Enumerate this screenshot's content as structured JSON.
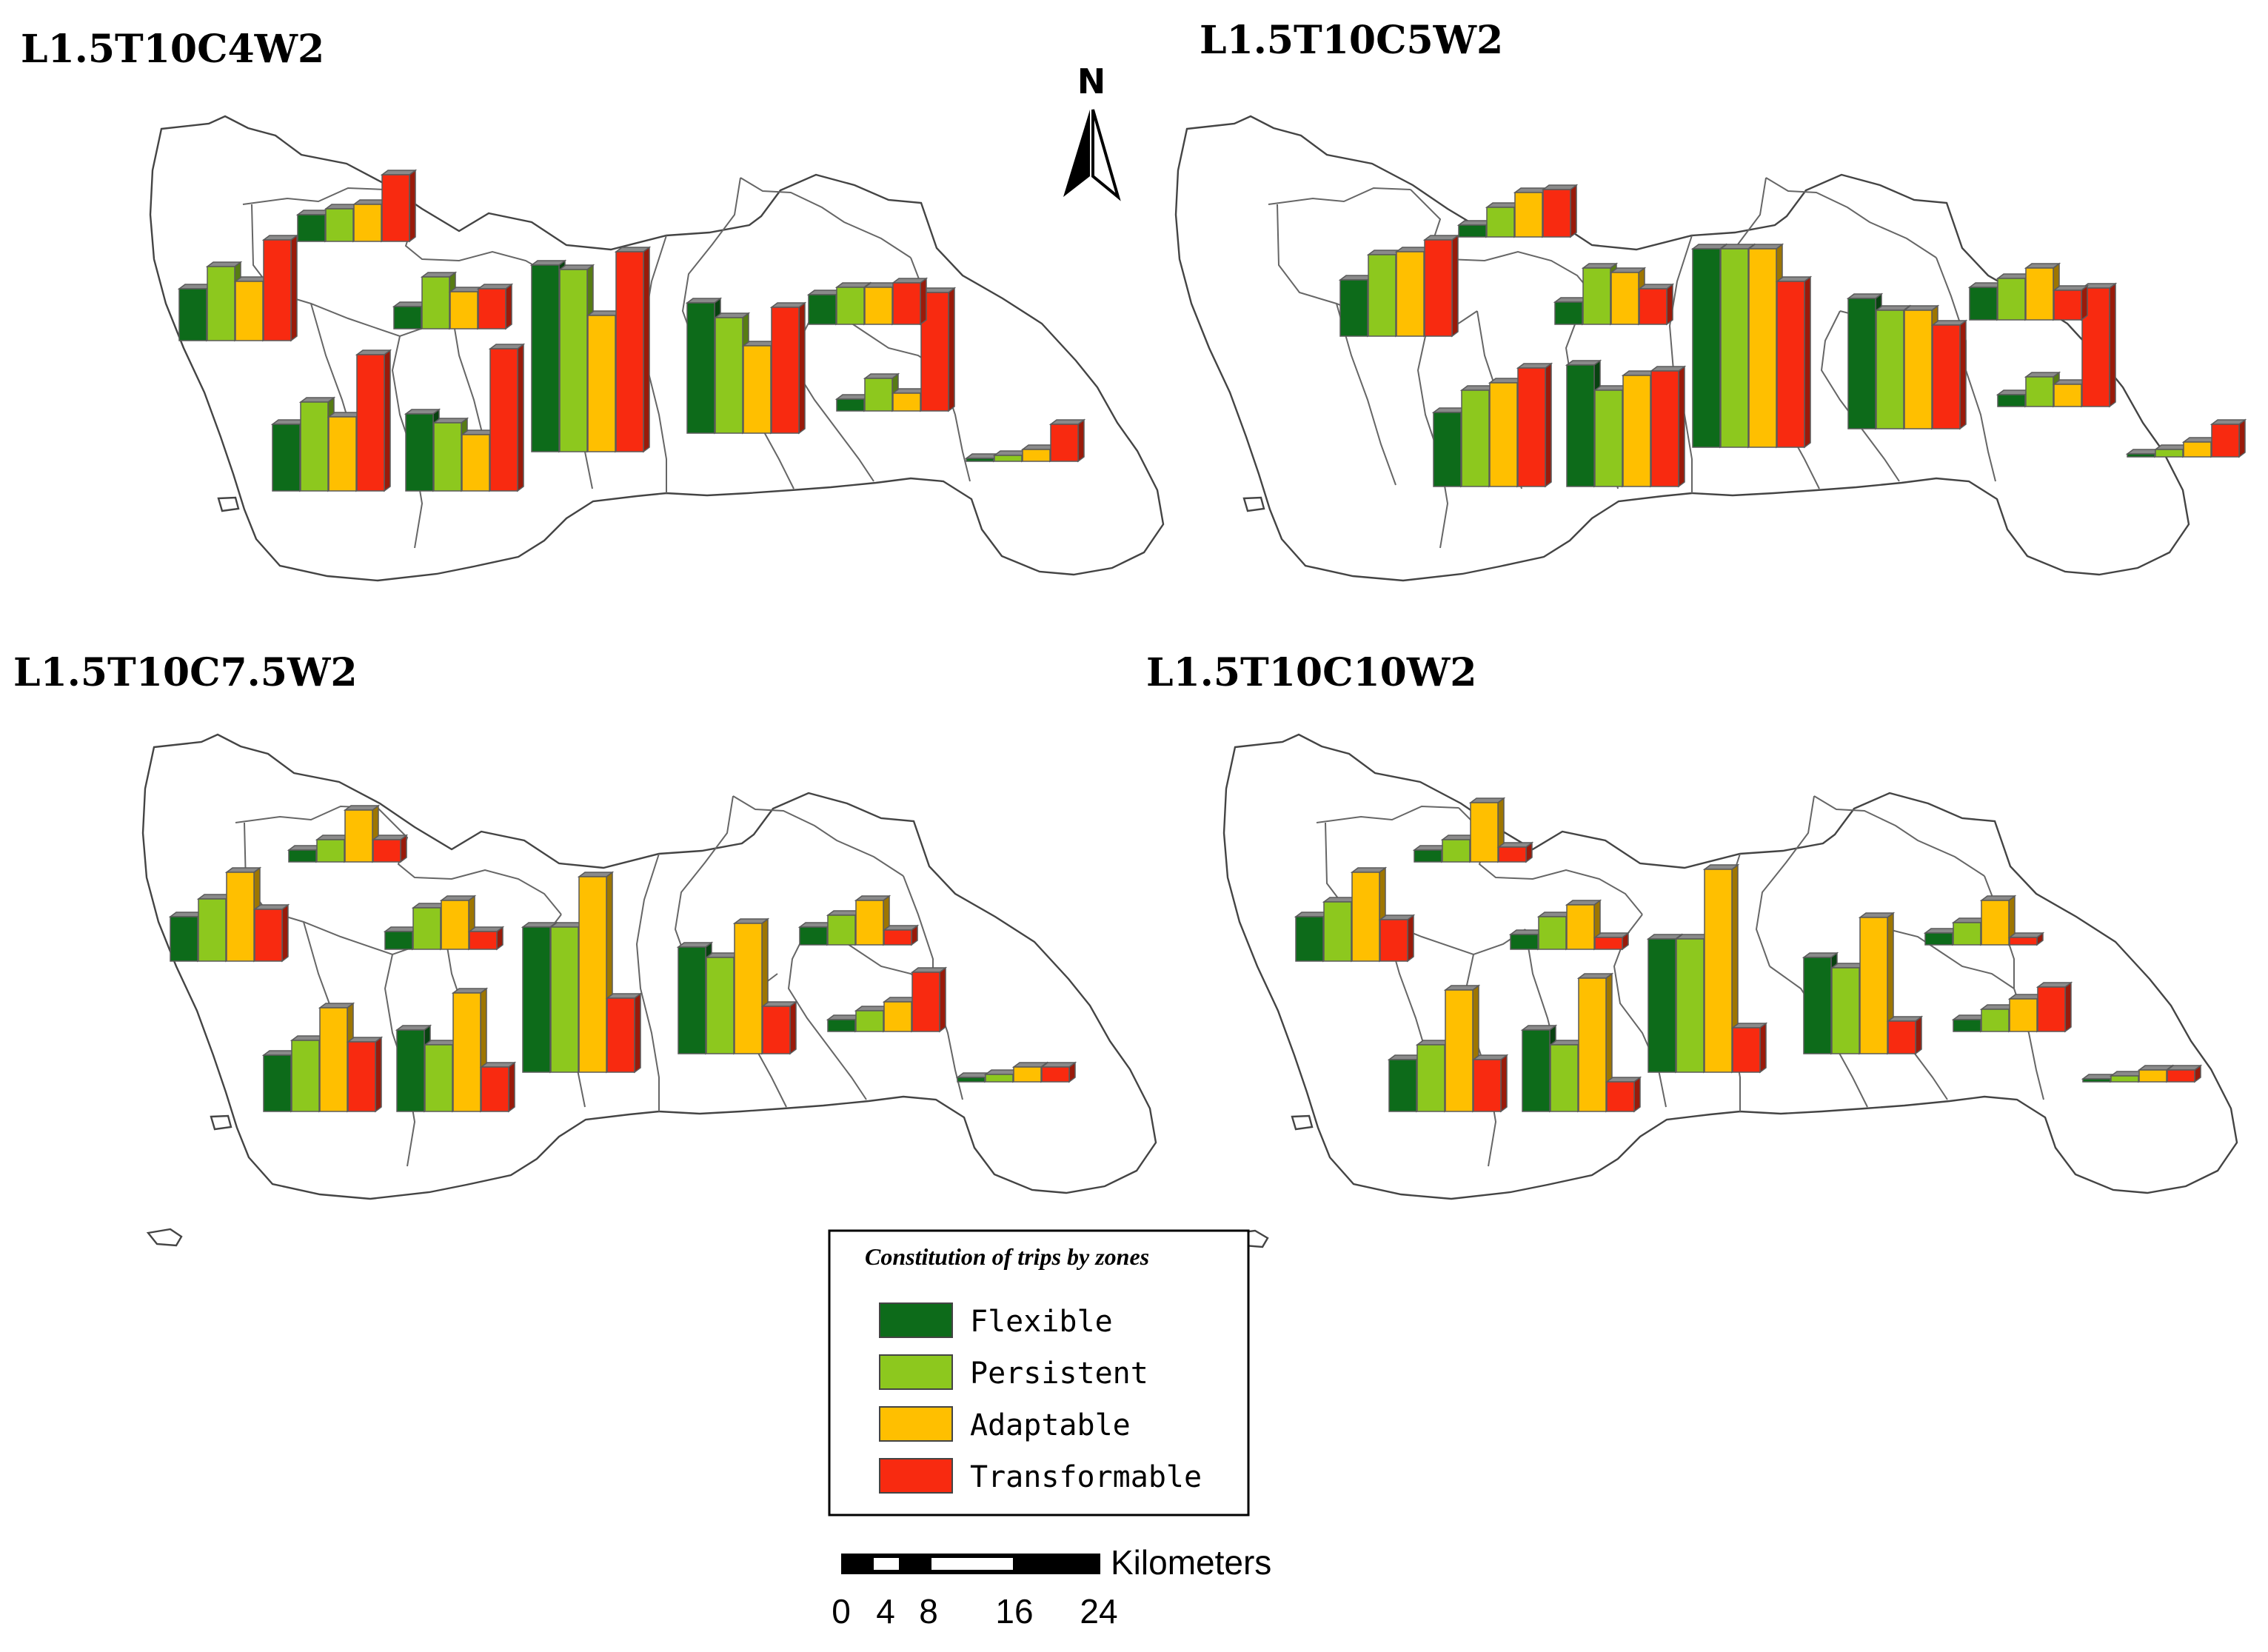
{
  "panels": [
    {
      "title": "L1.5T10C4W2",
      "chart_data": {
        "type": "bar",
        "categories": [
          "Flexible",
          "Persistent",
          "Adaptable",
          "Transformable"
        ],
        "zones": [
          {
            "values": [
              0.35,
              0.5,
              0.4,
              0.68
            ]
          },
          {
            "values": [
              0.18,
              0.22,
              0.25,
              0.45
            ]
          },
          {
            "values": [
              0.15,
              0.35,
              0.25,
              0.27
            ]
          },
          {
            "values": [
              0.45,
              0.6,
              0.5,
              0.92
            ]
          },
          {
            "values": [
              0.52,
              0.46,
              0.38,
              0.96
            ]
          },
          {
            "values": [
              1.26,
              1.23,
              0.92,
              1.35
            ]
          },
          {
            "values": [
              0.88,
              0.78,
              0.59,
              0.85
            ]
          },
          {
            "values": [
              0.08,
              0.22,
              0.12,
              0.8
            ]
          },
          {
            "values": [
              0.2,
              0.25,
              0.25,
              0.28
            ]
          },
          {
            "values": [
              0.02,
              0.04,
              0.08,
              0.25
            ]
          }
        ]
      }
    },
    {
      "title": "L1.5T10C5W2",
      "chart_data": {
        "type": "bar",
        "categories": [
          "Flexible",
          "Persistent",
          "Adaptable",
          "Transformable"
        ],
        "zones": [
          {
            "values": [
              0.38,
              0.55,
              0.57,
              0.65
            ]
          },
          {
            "values": [
              0.08,
              0.2,
              0.3,
              0.32
            ]
          },
          {
            "values": [
              0.15,
              0.38,
              0.35,
              0.24
            ]
          },
          {
            "values": [
              0.5,
              0.65,
              0.7,
              0.8
            ]
          },
          {
            "values": [
              0.82,
              0.65,
              0.75,
              0.78
            ]
          },
          {
            "values": [
              1.34,
              1.34,
              1.34,
              1.12
            ]
          },
          {
            "values": [
              0.88,
              0.8,
              0.8,
              0.7
            ]
          },
          {
            "values": [
              0.08,
              0.2,
              0.15,
              0.8
            ]
          },
          {
            "values": [
              0.22,
              0.28,
              0.35,
              0.2
            ]
          },
          {
            "values": [
              0.02,
              0.05,
              0.1,
              0.22
            ]
          }
        ]
      }
    },
    {
      "title": "L1.5T10C7.5W2",
      "chart_data": {
        "type": "bar",
        "categories": [
          "Flexible",
          "Persistent",
          "Adaptable",
          "Transformable"
        ],
        "zones": [
          {
            "values": [
              0.3,
              0.42,
              0.6,
              0.35
            ]
          },
          {
            "values": [
              0.08,
              0.15,
              0.35,
              0.15
            ]
          },
          {
            "values": [
              0.12,
              0.28,
              0.33,
              0.12
            ]
          },
          {
            "values": [
              0.38,
              0.48,
              0.7,
              0.47
            ]
          },
          {
            "values": [
              0.55,
              0.45,
              0.8,
              0.3
            ]
          },
          {
            "values": [
              0.98,
              0.98,
              1.32,
              0.5
            ]
          },
          {
            "values": [
              0.72,
              0.65,
              0.88,
              0.32
            ]
          },
          {
            "values": [
              0.08,
              0.14,
              0.2,
              0.4
            ]
          },
          {
            "values": [
              0.12,
              0.2,
              0.3,
              0.1
            ]
          },
          {
            "values": [
              0.03,
              0.05,
              0.1,
              0.1
            ]
          }
        ]
      }
    },
    {
      "title": "L1.5T10C10W2",
      "chart_data": {
        "type": "bar",
        "categories": [
          "Flexible",
          "Persistent",
          "Adaptable",
          "Transformable"
        ],
        "zones": [
          {
            "values": [
              0.3,
              0.4,
              0.6,
              0.28
            ]
          },
          {
            "values": [
              0.08,
              0.15,
              0.4,
              0.1
            ]
          },
          {
            "values": [
              0.1,
              0.22,
              0.3,
              0.08
            ]
          },
          {
            "values": [
              0.35,
              0.45,
              0.82,
              0.35
            ]
          },
          {
            "values": [
              0.55,
              0.45,
              0.9,
              0.2
            ]
          },
          {
            "values": [
              0.9,
              0.9,
              1.37,
              0.3
            ]
          },
          {
            "values": [
              0.65,
              0.58,
              0.92,
              0.22
            ]
          },
          {
            "values": [
              0.08,
              0.15,
              0.22,
              0.3
            ]
          },
          {
            "values": [
              0.08,
              0.15,
              0.3,
              0.05
            ]
          },
          {
            "values": [
              0.02,
              0.04,
              0.08,
              0.08
            ]
          }
        ]
      }
    }
  ],
  "legend": {
    "title": "Constitution of trips by zones",
    "items": [
      {
        "label": "Flexible",
        "color": "#0d6b1a"
      },
      {
        "label": "Persistent",
        "color": "#8dc81e"
      },
      {
        "label": "Adaptable",
        "color": "#ffbf00"
      },
      {
        "label": "Transformable",
        "color": "#f82a10"
      }
    ]
  },
  "north_arrow": {
    "label": "N"
  },
  "scale_bar": {
    "unit": "Kilometers",
    "ticks": [
      "0",
      "4",
      "8",
      "16",
      "24"
    ]
  }
}
